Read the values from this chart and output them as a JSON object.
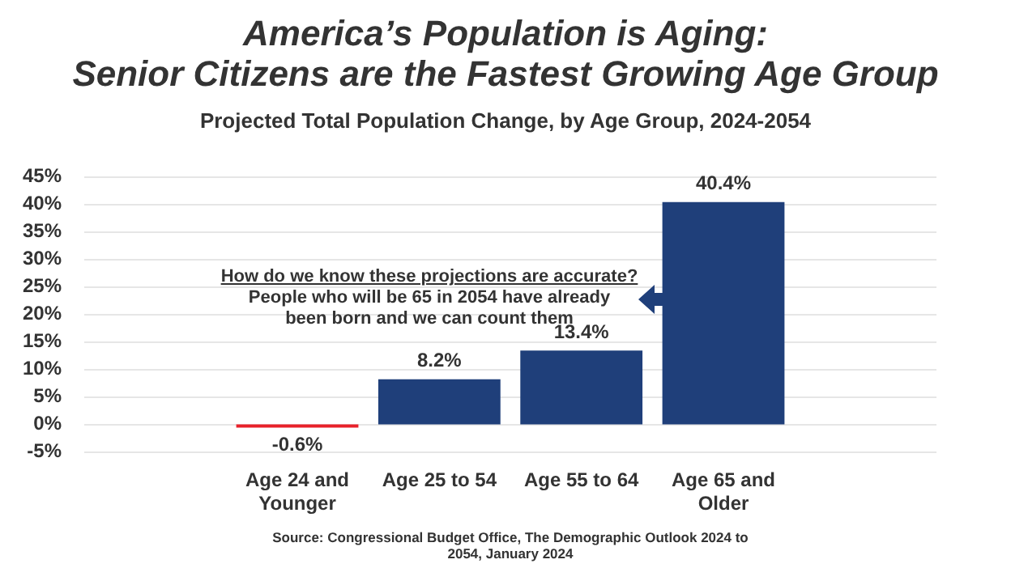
{
  "chart_data": {
    "type": "bar",
    "title": "America’s Population is Aging:\nSenior Citizens are the Fastest Growing Age Group",
    "subtitle": "Projected Total Population Change, by Age Group, 2024-2054",
    "categories": [
      "Age 24 and Younger",
      "Age 25 to 54",
      "Age 55 to 64",
      "Age 65 and Older"
    ],
    "values": [
      -0.6,
      8.2,
      13.4,
      40.4
    ],
    "colors": [
      "#e8212a",
      "#1f3f7a",
      "#1f3f7a",
      "#1f3f7a"
    ],
    "value_labels": [
      "-0.6%",
      "8.2%",
      "13.4%",
      "40.4%"
    ],
    "ylim": [
      -5,
      45
    ],
    "yticks": [
      {
        "value": -5,
        "label": "-5%"
      },
      {
        "value": 0,
        "label": "0%"
      },
      {
        "value": 5,
        "label": "5%"
      },
      {
        "value": 10,
        "label": "10%"
      },
      {
        "value": 15,
        "label": "15%"
      },
      {
        "value": 20,
        "label": "20%"
      },
      {
        "value": 25,
        "label": "25%"
      },
      {
        "value": 30,
        "label": "30%"
      },
      {
        "value": 35,
        "label": "35%"
      },
      {
        "value": 40,
        "label": "40%"
      },
      {
        "value": 45,
        "label": "45%"
      }
    ],
    "grid": "y",
    "legend": false,
    "annotations": [
      "How do we know these projections are accurate?",
      "People who will be 65 in 2054 have already been born and we can count them",
      "Source: Congressional Budget Office, The Demographic Outlook 2024 to 2054, January 2024"
    ]
  }
}
